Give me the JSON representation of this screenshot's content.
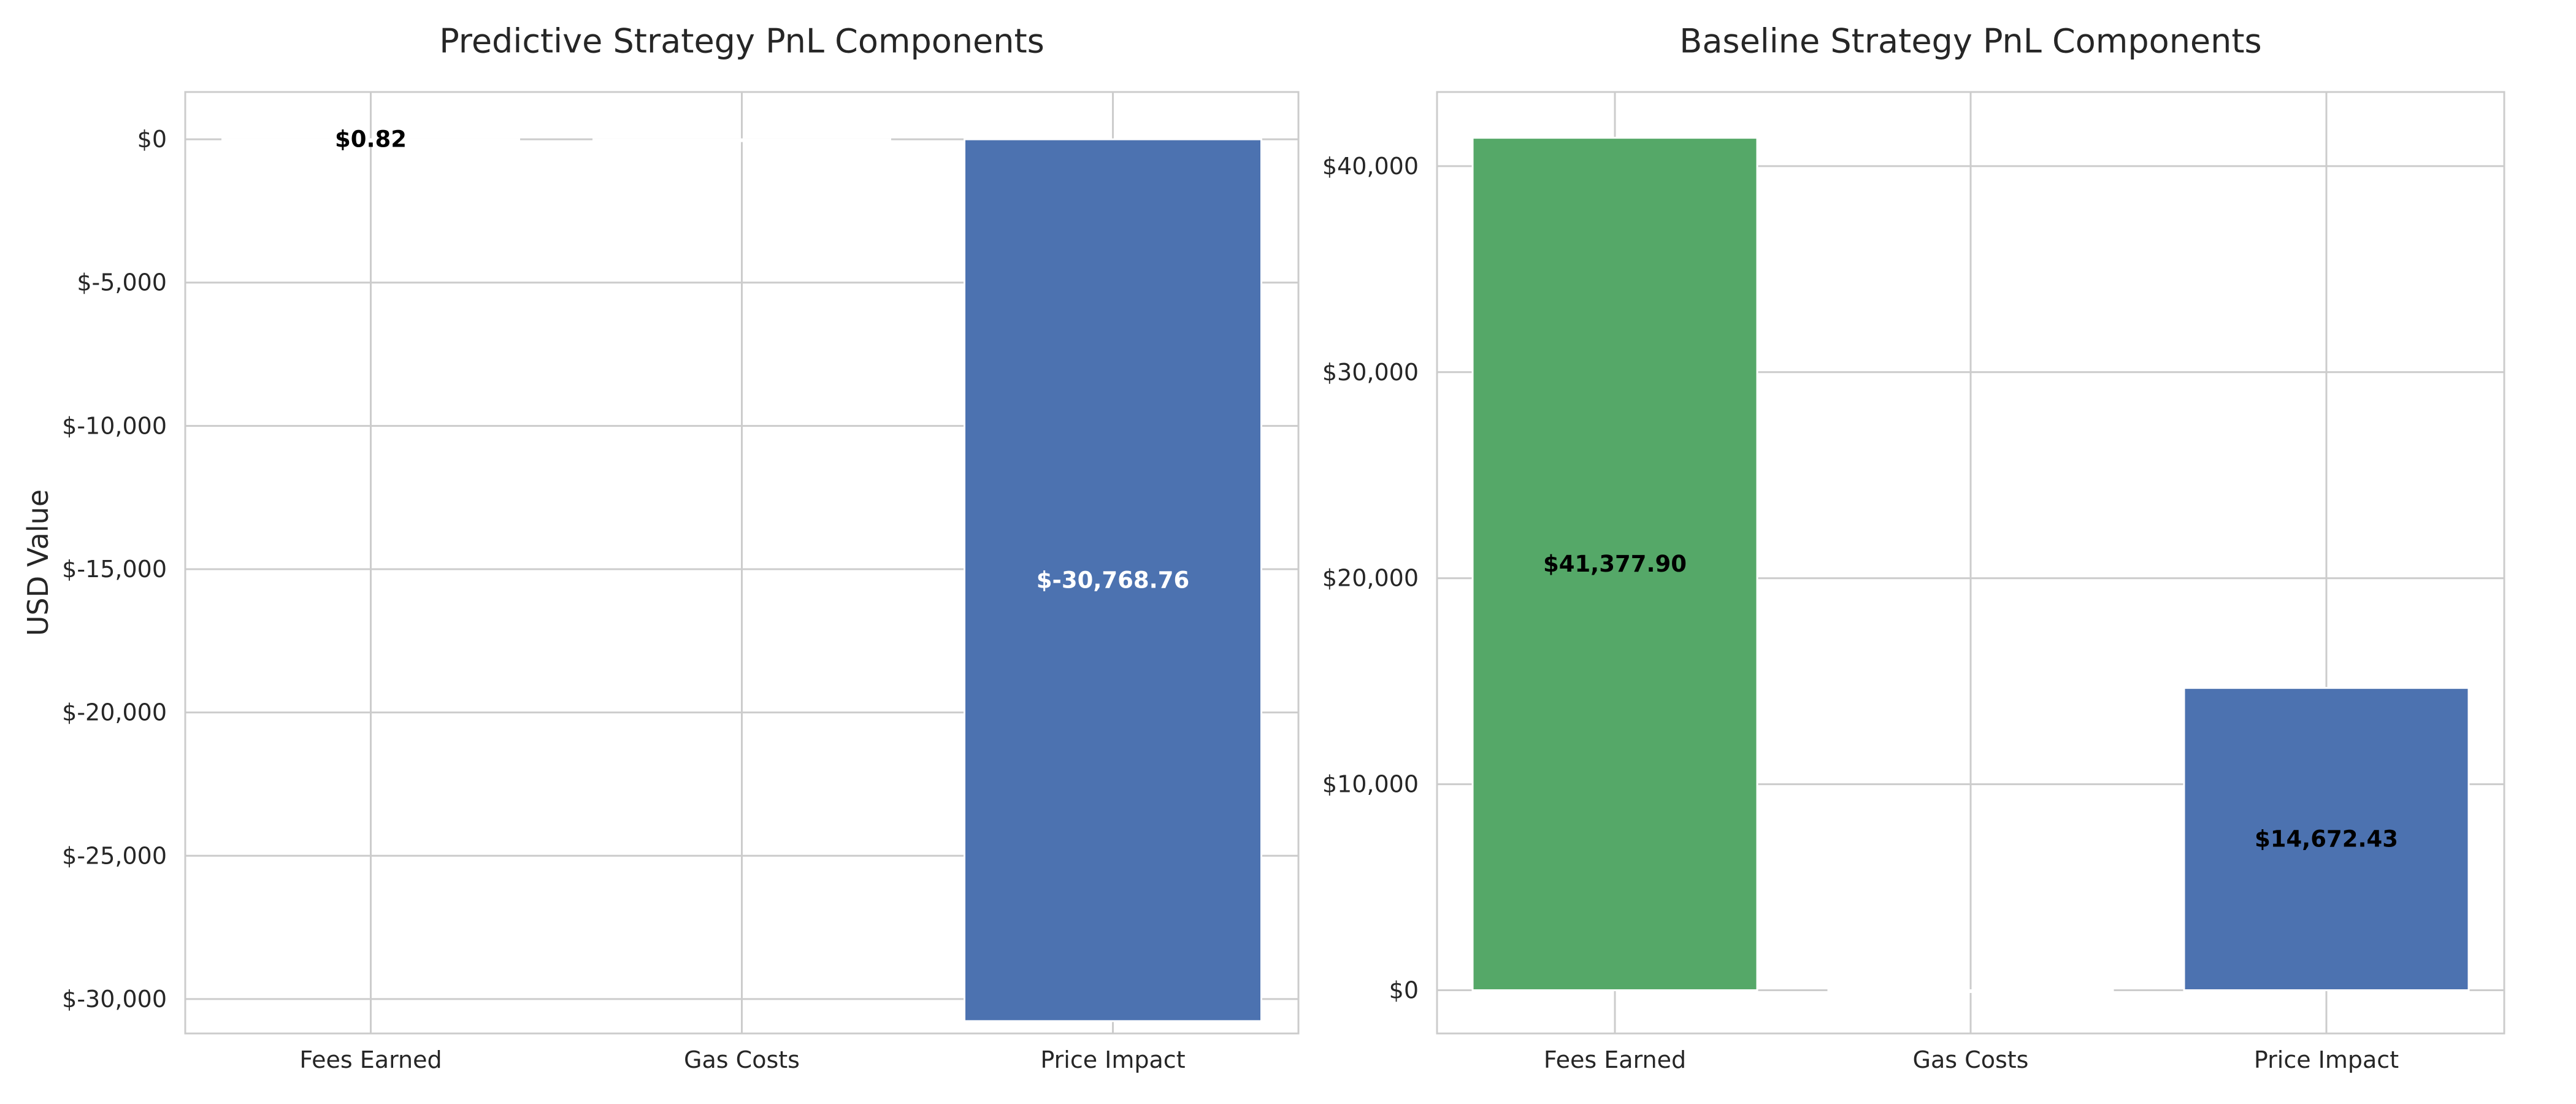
{
  "chart_data": [
    {
      "type": "bar",
      "title": "Predictive Strategy PnL Components",
      "xlabel": "",
      "ylabel": "USD Value",
      "categories": [
        "Fees Earned",
        "Gas Costs",
        "Price Impact"
      ],
      "values": [
        0.82,
        0,
        -30768.76
      ],
      "data_labels": [
        "$0.82",
        "",
        "$-30,768.76"
      ],
      "bar_colors": [
        "#55a868",
        "#c44e52",
        "#4c72b0"
      ],
      "label_colors": [
        "#000000",
        "#ffffff",
        "#ffffff"
      ],
      "ylim": [
        -31200,
        1650
      ],
      "yticks": [
        0,
        -5000,
        -10000,
        -15000,
        -20000,
        -25000,
        -30000
      ],
      "ytick_labels": [
        "$0",
        "$-5,000",
        "$-10,000",
        "$-15,000",
        "$-20,000",
        "$-25,000",
        "$-30,000"
      ],
      "grid": true,
      "legend": "none"
    },
    {
      "type": "bar",
      "title": "Baseline Strategy PnL Components",
      "xlabel": "",
      "ylabel": "",
      "categories": [
        "Fees Earned",
        "Gas Costs",
        "Price Impact"
      ],
      "values": [
        41377.9,
        0,
        14672.43
      ],
      "data_labels": [
        "$41,377.90",
        "",
        "$14,672.43"
      ],
      "bar_colors": [
        "#55a868",
        "#c44e52",
        "#4c72b0"
      ],
      "label_colors": [
        "#000000",
        "#ffffff",
        "#000000"
      ],
      "ylim": [
        -2100,
        43600
      ],
      "yticks": [
        0,
        10000,
        20000,
        30000,
        40000
      ],
      "ytick_labels": [
        "$0",
        "$10,000",
        "$20,000",
        "$30,000",
        "$40,000"
      ],
      "grid": true,
      "legend": "none"
    }
  ]
}
